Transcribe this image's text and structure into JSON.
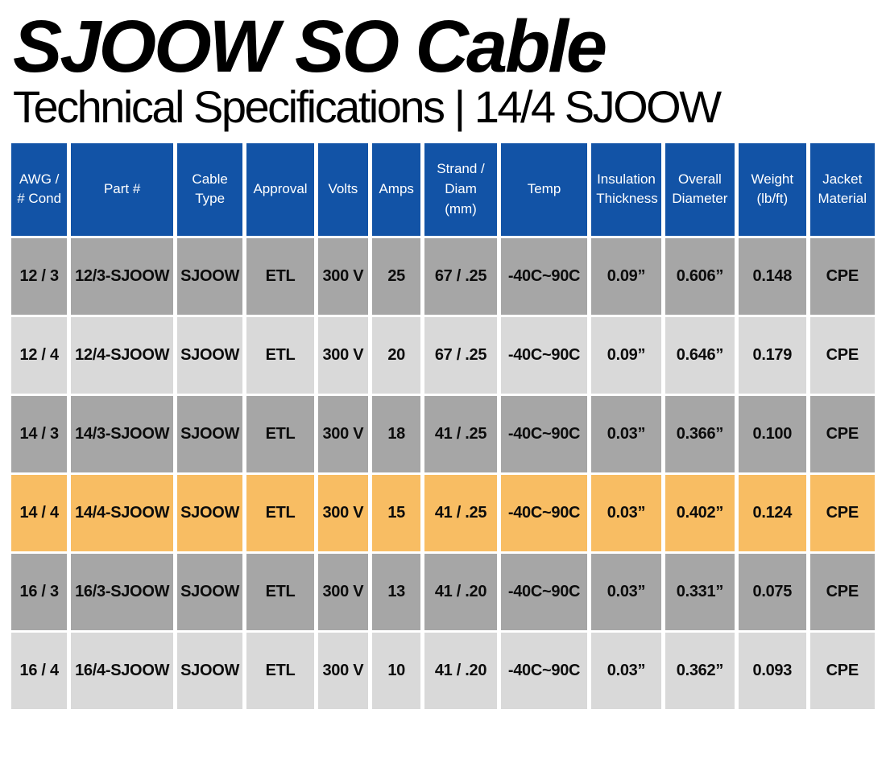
{
  "page": {
    "title": "SJOOW SO Cable",
    "subtitle": "Technical Specifications | 14/4 SJOOW"
  },
  "table": {
    "columns": [
      "AWG / # Cond",
      "Part #",
      "Cable Type",
      "Approval",
      "Volts",
      "Amps",
      "Strand / Diam (mm)",
      "Temp",
      "Insulation Thickness",
      "Overall Diameter",
      "Weight (lb/ft)",
      "Jacket Material"
    ],
    "rows": [
      {
        "variant": "dark",
        "cells": [
          "12 / 3",
          "12/3-SJOOW",
          "SJOOW",
          "ETL",
          "300 V",
          "25",
          "67 / .25",
          "-40C~90C",
          "0.09”",
          "0.606”",
          "0.148",
          "CPE"
        ]
      },
      {
        "variant": "light",
        "cells": [
          "12 / 4",
          "12/4-SJOOW",
          "SJOOW",
          "ETL",
          "300 V",
          "20",
          "67 / .25",
          "-40C~90C",
          "0.09”",
          "0.646”",
          "0.179",
          "CPE"
        ]
      },
      {
        "variant": "dark",
        "cells": [
          "14 / 3",
          "14/3-SJOOW",
          "SJOOW",
          "ETL",
          "300 V",
          "18",
          "41 / .25",
          "-40C~90C",
          "0.03”",
          "0.366”",
          "0.100",
          "CPE"
        ]
      },
      {
        "variant": "highlight",
        "cells": [
          "14 / 4",
          "14/4-SJOOW",
          "SJOOW",
          "ETL",
          "300 V",
          "15",
          "41 / .25",
          "-40C~90C",
          "0.03”",
          "0.402”",
          "0.124",
          "CPE"
        ]
      },
      {
        "variant": "dark",
        "cells": [
          "16 / 3",
          "16/3-SJOOW",
          "SJOOW",
          "ETL",
          "300 V",
          "13",
          "41 / .20",
          "-40C~90C",
          "0.03”",
          "0.331”",
          "0.075",
          "CPE"
        ]
      },
      {
        "variant": "light",
        "cells": [
          "16 / 4",
          "16/4-SJOOW",
          "SJOOW",
          "ETL",
          "300 V",
          "10",
          "41 / .20",
          "-40C~90C",
          "0.03”",
          "0.362”",
          "0.093",
          "CPE"
        ]
      }
    ],
    "colors": {
      "header_bg": "#1253a6",
      "header_text": "#ffffff",
      "row_dark": "#a6a6a6",
      "row_light": "#d9d9d9",
      "row_highlight": "#f8bd63",
      "cell_text": "#0c0c0c",
      "gap": "#ffffff"
    }
  }
}
